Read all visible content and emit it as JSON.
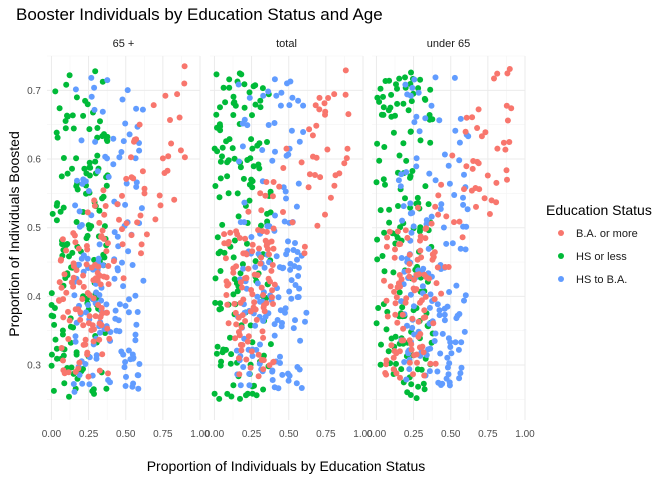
{
  "chart_data": {
    "type": "scatter",
    "title": "Booster Individuals by Education Status and Age",
    "xlabel": "Proportion of Individuals by Education Status",
    "ylabel": "Proportion of Individuals Boosted",
    "facets": [
      "65 +",
      "total",
      "under 65"
    ],
    "xlim": [
      -0.03,
      1.0
    ],
    "ylim": [
      0.22,
      0.75
    ],
    "x_ticks": [
      0.0,
      0.25,
      0.5,
      0.75,
      1.0
    ],
    "x_tick_labels": [
      "0.00",
      "0.25",
      "0.50",
      "0.75",
      "1.00"
    ],
    "y_ticks": [
      0.3,
      0.4,
      0.5,
      0.6,
      0.7
    ],
    "y_tick_labels": [
      "0.3",
      "0.4",
      "0.5",
      "0.6",
      "0.7"
    ],
    "grid": true,
    "legend": {
      "title": "Education Status",
      "position": "right",
      "entries": [
        "B.A. or more",
        "HS or less",
        "HS to B.A."
      ]
    },
    "colors": {
      "B.A. or more": "#f8766d",
      "HS or less": "#00ba38",
      "HS to B.A.": "#619cff"
    },
    "series": [
      {
        "name": "B.A. or more",
        "x_range": [
          0.05,
          0.92
        ],
        "y_range": [
          0.27,
          0.735
        ],
        "n_per_panel": 145
      },
      {
        "name": "HS or less",
        "x_range": [
          0.0,
          0.38
        ],
        "y_range": [
          0.245,
          0.735
        ],
        "n_per_panel": 150
      },
      {
        "name": "HS to B.A.",
        "x_range": [
          0.15,
          0.62
        ],
        "y_range": [
          0.245,
          0.735
        ],
        "n_per_panel": 150
      }
    ]
  }
}
